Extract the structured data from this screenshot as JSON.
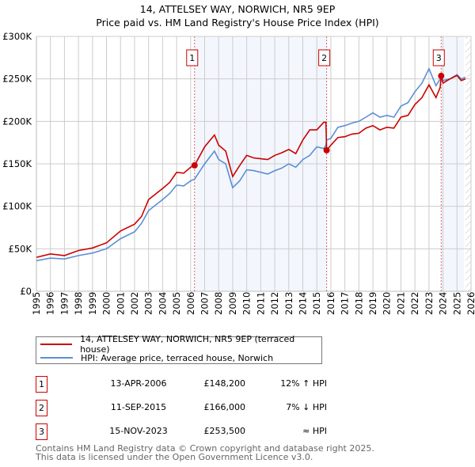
{
  "title": "14, ATTELSEY WAY, NORWICH, NR5 9EP",
  "subtitle": "Price paid vs. HM Land Registry's House Price Index (HPI)",
  "chart_data": {
    "type": "line",
    "title": "14, ATTELSEY WAY, NORWICH, NR5 9EP — Price paid vs. HM Land Registry's House Price Index (HPI)",
    "xlim": [
      1995,
      2026
    ],
    "ylim": [
      0,
      300000
    ],
    "x_ticks": [
      "1995",
      "1996",
      "1997",
      "1998",
      "1999",
      "2000",
      "2001",
      "2002",
      "2003",
      "2004",
      "2005",
      "2006",
      "2007",
      "2008",
      "2009",
      "2010",
      "2011",
      "2012",
      "2013",
      "2014",
      "2015",
      "2016",
      "2017",
      "2018",
      "2019",
      "2020",
      "2021",
      "2022",
      "2023",
      "2024",
      "2025",
      "2026"
    ],
    "y_ticks": [
      {
        "v": 0,
        "label": "£0"
      },
      {
        "v": 50000,
        "label": "£50K"
      },
      {
        "v": 100000,
        "label": "£100K"
      },
      {
        "v": 150000,
        "label": "£150K"
      },
      {
        "v": 200000,
        "label": "£200K"
      },
      {
        "v": 250000,
        "label": "£250K"
      },
      {
        "v": 300000,
        "label": "£300K"
      }
    ],
    "grid": true,
    "series": [
      {
        "name": "14, ATTELSEY WAY, NORWICH, NR5 9EP (terraced house)",
        "color": "#cc0000",
        "x": [
          1995,
          1996,
          1997,
          1998,
          1999,
          2000,
          2001,
          2002,
          2002.5,
          2003,
          2004,
          2004.5,
          2005,
          2005.5,
          2006,
          2006.28,
          2007,
          2007.7,
          2008,
          2008.5,
          2009,
          2009.5,
          2010,
          2010.5,
          2011,
          2011.5,
          2012,
          2012.5,
          2013,
          2013.5,
          2014,
          2014.5,
          2015,
          2015.5,
          2015.65,
          2015.7,
          2016,
          2016.5,
          2017,
          2017.5,
          2018,
          2018.5,
          2019,
          2019.5,
          2020,
          2020.5,
          2021,
          2021.5,
          2022,
          2022.5,
          2023,
          2023.5,
          2023.8,
          2023.87,
          2024,
          2024.5,
          2025,
          2025.3,
          2025.6
        ],
        "y": [
          40000,
          44000,
          42000,
          48000,
          51000,
          57000,
          71000,
          79000,
          88000,
          108000,
          121000,
          128000,
          140000,
          139000,
          146000,
          148200,
          170000,
          184000,
          172000,
          165000,
          135000,
          148000,
          160000,
          157000,
          156000,
          155000,
          160000,
          163000,
          167000,
          162000,
          178000,
          190000,
          190000,
          199000,
          199000,
          166000,
          172000,
          181000,
          182000,
          185000,
          186000,
          192000,
          195000,
          190000,
          193000,
          192000,
          205000,
          207000,
          220000,
          228000,
          243000,
          228000,
          240000,
          253500,
          245000,
          250000,
          254000,
          248000,
          250000
        ]
      },
      {
        "name": "HPI: Average price, terraced house, Norwich",
        "color": "#5b8fd4",
        "x": [
          1995,
          1996,
          1997,
          1998,
          1999,
          2000,
          2001,
          2002,
          2002.5,
          2003,
          2004,
          2004.5,
          2005,
          2005.5,
          2006,
          2006.28,
          2007,
          2007.7,
          2008,
          2008.5,
          2009,
          2009.5,
          2010,
          2010.5,
          2011,
          2011.5,
          2012,
          2012.5,
          2013,
          2013.5,
          2014,
          2014.5,
          2015,
          2015.5,
          2015.65,
          2015.7,
          2016,
          2016.5,
          2017,
          2017.5,
          2018,
          2018.5,
          2019,
          2019.5,
          2020,
          2020.5,
          2021,
          2021.5,
          2022,
          2022.5,
          2023,
          2023.5,
          2023.8,
          2023.87,
          2024,
          2024.5,
          2025,
          2025.3,
          2025.6
        ],
        "y": [
          36000,
          39000,
          38000,
          42000,
          45000,
          50000,
          62000,
          70000,
          80000,
          95000,
          108000,
          115000,
          125000,
          124000,
          130000,
          132000,
          150000,
          165000,
          155000,
          150000,
          122000,
          130000,
          143000,
          142000,
          140000,
          138000,
          142000,
          145000,
          150000,
          146000,
          155000,
          160000,
          170000,
          168000,
          172000,
          178000,
          180000,
          193000,
          195000,
          198000,
          200000,
          205000,
          210000,
          205000,
          207000,
          205000,
          218000,
          222000,
          235000,
          245000,
          262000,
          242000,
          250000,
          252000,
          248000,
          250000,
          255000,
          250000,
          252000
        ]
      }
    ],
    "shaded_ranges": [
      [
        2006.28,
        2015.7
      ],
      [
        2023.87,
        2025.5
      ]
    ],
    "forecast_hatch_from": 2025.6,
    "sales": [
      {
        "id": "1",
        "x": 2006.28,
        "y": 148200
      },
      {
        "id": "2",
        "x": 2015.7,
        "y": 166000
      },
      {
        "id": "3",
        "x": 2023.87,
        "y": 253500
      }
    ],
    "legend_placement": "below"
  },
  "legend": {
    "property": "14, ATTELSEY WAY, NORWICH, NR5 9EP (terraced house)",
    "hpi": "HPI: Average price, terraced house, Norwich"
  },
  "transactions": [
    {
      "id": "1",
      "date": "13-APR-2006",
      "price": "£148,200",
      "hpi": "12% ↑ HPI"
    },
    {
      "id": "2",
      "date": "11-SEP-2015",
      "price": "£166,000",
      "hpi": "7% ↓ HPI"
    },
    {
      "id": "3",
      "date": "15-NOV-2023",
      "price": "£253,500",
      "hpi": "≈ HPI"
    }
  ],
  "footer": {
    "line1": "Contains HM Land Registry data © Crown copyright and database right 2025.",
    "line2": "This data is licensed under the Open Government Licence v3.0."
  }
}
